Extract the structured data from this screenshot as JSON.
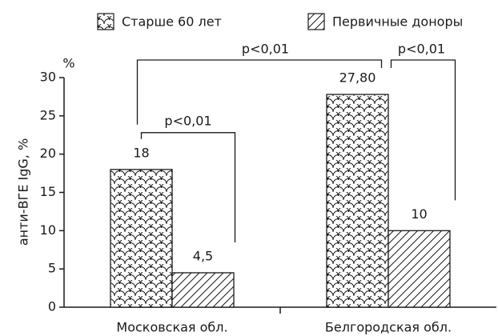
{
  "chart_data": {
    "type": "bar",
    "y_label": "анти-ВГЕ IgG, %",
    "y_unit": "%",
    "categories": [
      "Московская обл.",
      "Белгородская обл."
    ],
    "series": [
      {
        "name": "Старше 60 лет",
        "pattern": "scales",
        "color": "#1a1a1a",
        "values": [
          18,
          27.8
        ],
        "value_labels": [
          "18",
          "27,80"
        ]
      },
      {
        "name": "Первичные доноры",
        "pattern": "hatch",
        "color": "#1a1a1a",
        "values": [
          4.5,
          10
        ],
        "value_labels": [
          "4,5",
          "10"
        ]
      }
    ],
    "annotations": [
      "p<0,01",
      "p<0,01",
      "p<0,01"
    ],
    "ylim": [
      0,
      30
    ],
    "yticks": [
      0,
      5,
      10,
      15,
      20,
      25,
      30
    ]
  }
}
